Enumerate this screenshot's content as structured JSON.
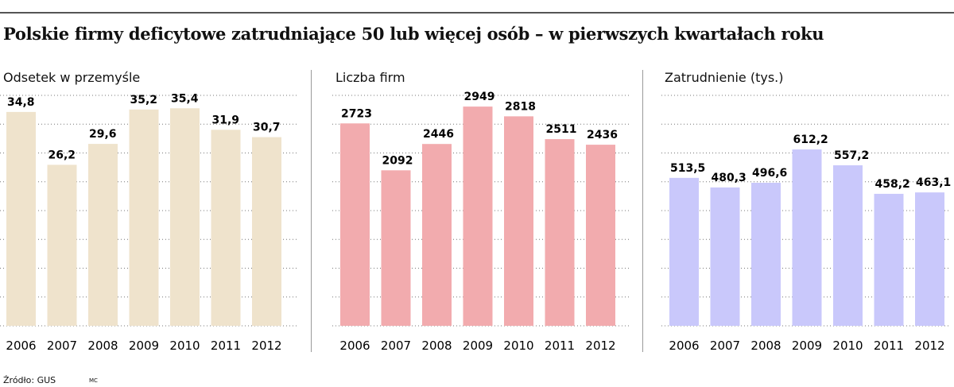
{
  "title": "Polskie firmy deficytowe zatrudniające 50 lub więcej osób – w pierwszych kwartałach roku",
  "source": "Źródło: GUS",
  "author": "MC",
  "chart_data": [
    {
      "type": "bar",
      "title": "Odsetek w przemyśle",
      "categories": [
        "2006",
        "2007",
        "2008",
        "2009",
        "2010",
        "2011",
        "2012"
      ],
      "values": [
        34.8,
        26.2,
        29.6,
        35.2,
        35.4,
        31.9,
        30.7
      ],
      "labels": [
        "34,8",
        "26,2",
        "29,6",
        "35,2",
        "35,4",
        "31,9",
        "30,7"
      ],
      "ylim": [
        0,
        37.5
      ],
      "grid": true,
      "color": "#efe3cc"
    },
    {
      "type": "bar",
      "title": "Liczba firm",
      "categories": [
        "2006",
        "2007",
        "2008",
        "2009",
        "2010",
        "2011",
        "2012"
      ],
      "values": [
        2723,
        2092,
        2446,
        2949,
        2818,
        2511,
        2436
      ],
      "labels": [
        "2723",
        "2092",
        "2446",
        "2949",
        "2818",
        "2511",
        "2436"
      ],
      "ylim": [
        0,
        3100
      ],
      "grid": true,
      "color": "#f2abae"
    },
    {
      "type": "bar",
      "title": "Zatrudnienie (tys.)",
      "categories": [
        "2006",
        "2007",
        "2008",
        "2009",
        "2010",
        "2011",
        "2012"
      ],
      "values": [
        513.5,
        480.3,
        496.6,
        612.2,
        557.2,
        458.2,
        463.1
      ],
      "labels": [
        "513,5",
        "480,3",
        "496,6",
        "612,2",
        "557,2",
        "458,2",
        "463,1"
      ],
      "ylim": [
        0,
        800
      ],
      "grid": true,
      "color": "#c9c8fb"
    }
  ]
}
